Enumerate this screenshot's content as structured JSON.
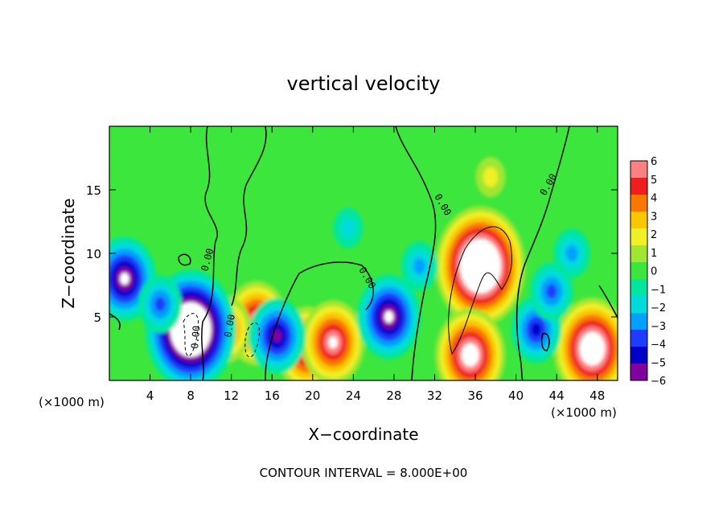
{
  "chart_data": {
    "type": "heatmap",
    "title": "vertical velocity",
    "xlabel": "X−coordinate",
    "ylabel": "Z−coordinate",
    "x_unit_left": "(×1000 m)",
    "x_unit_right": "(×1000 m)",
    "x_ticks": [
      4,
      8,
      12,
      16,
      20,
      24,
      28,
      32,
      36,
      40,
      44,
      48
    ],
    "y_ticks": [
      5,
      10,
      15
    ],
    "xlim": [
      0,
      50
    ],
    "ylim": [
      0,
      20
    ],
    "zlim": [
      -6,
      6
    ],
    "colorbar_ticks": [
      "6",
      "5",
      "4",
      "3",
      "2",
      "1",
      "0",
      "−1",
      "−2",
      "−3",
      "−4",
      "−5",
      "−6"
    ],
    "contour_labels": [
      "0.00",
      "0.00",
      "0.00",
      "0.00",
      "0.00",
      "0.00"
    ],
    "footer": "CONTOUR INTERVAL = 8.000E+00",
    "features": [
      {
        "x": 36.5,
        "z": 9.0,
        "w": 11.0,
        "kind": "updraft"
      },
      {
        "x": 47.5,
        "z": 2.5,
        "w": 9.0,
        "kind": "updraft"
      },
      {
        "x": 35.5,
        "z": 2.0,
        "w": 8.0,
        "kind": "updraft"
      },
      {
        "x": 19.5,
        "z": 2.5,
        "w": 7.0,
        "kind": "updraft"
      },
      {
        "x": 22.0,
        "z": 3.0,
        "w": 7.0,
        "kind": "updraft"
      },
      {
        "x": 14.5,
        "z": 4.5,
        "w": 7.0,
        "kind": "updraft"
      },
      {
        "x": 11.5,
        "z": 4.0,
        "w": 5.0,
        "kind": "updraft"
      },
      {
        "x": 37.5,
        "z": 16.0,
        "w": 2.0,
        "kind": "updraft"
      },
      {
        "x": 8.0,
        "z": 4.0,
        "w": -11.0,
        "kind": "downdraft"
      },
      {
        "x": 1.5,
        "z": 8.0,
        "w": -7.0,
        "kind": "downdraft"
      },
      {
        "x": 27.5,
        "z": 5.0,
        "w": -7.0,
        "kind": "downdraft"
      },
      {
        "x": 16.5,
        "z": 3.5,
        "w": -6.0,
        "kind": "downdraft"
      },
      {
        "x": 42.0,
        "z": 4.0,
        "w": -5.0,
        "kind": "downdraft"
      },
      {
        "x": 45.5,
        "z": 10.0,
        "w": -3.0,
        "kind": "downdraft"
      },
      {
        "x": 43.5,
        "z": 7.0,
        "w": -4.0,
        "kind": "downdraft"
      },
      {
        "x": 5.0,
        "z": 6.0,
        "w": -4.0,
        "kind": "downdraft"
      },
      {
        "x": 23.5,
        "z": 12.0,
        "w": -2.0,
        "kind": "downdraft"
      },
      {
        "x": 30.5,
        "z": 9.0,
        "w": -3.0,
        "kind": "downdraft"
      }
    ]
  },
  "colors": {
    "scale": [
      "#8000a0",
      "#0000c8",
      "#1e3cff",
      "#00a0ff",
      "#00dcdc",
      "#00e6a0",
      "#3ce63c",
      "#a0e632",
      "#f0f028",
      "#fac800",
      "#fa7800",
      "#f01e1e",
      "#ff8080"
    ]
  }
}
